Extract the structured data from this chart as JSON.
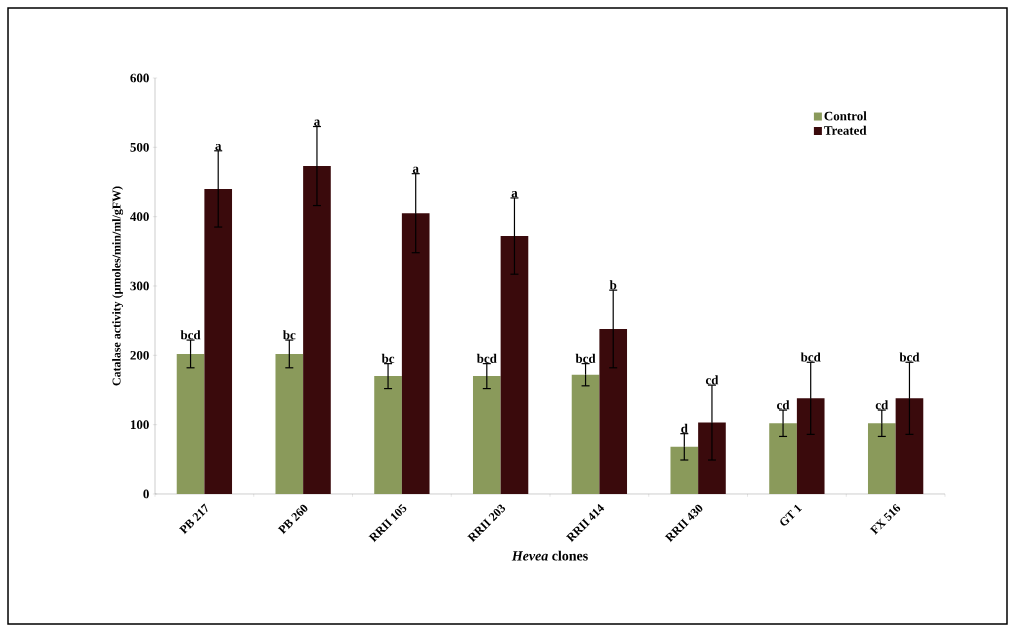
{
  "chart_data": {
    "type": "bar",
    "xlabel": "*Hevea* clones",
    "ylabel": "Catalase activity (µmoles/min/ml/gFW)",
    "categories": [
      "PB 217",
      "PB 260",
      "RRII 105",
      "RRII 203",
      "RRII 414",
      "RRII 430",
      "GT 1",
      "FX 516"
    ],
    "series": [
      {
        "name": "Control",
        "color": "#8a9a5b",
        "values": [
          202,
          202,
          170,
          170,
          172,
          68,
          102,
          102
        ],
        "errors": [
          20,
          20,
          18,
          18,
          16,
          19,
          19,
          19
        ],
        "value_labels": [
          "bcd",
          "bc",
          "bc",
          "bcd",
          "bcd",
          "d",
          "cd",
          "cd"
        ]
      },
      {
        "name": "Treated",
        "color": "#3a0a0c",
        "values": [
          440,
          473,
          405,
          372,
          238,
          103,
          138,
          138
        ],
        "errors": [
          55,
          57,
          57,
          55,
          56,
          54,
          52,
          52
        ],
        "value_labels": [
          "a",
          "a",
          "a",
          "a",
          "b",
          "cd",
          "bcd",
          "bcd"
        ]
      }
    ],
    "ylim": [
      0,
      600
    ],
    "yticks": [
      0,
      100,
      200,
      300,
      400,
      500,
      600
    ],
    "legend": "top right",
    "grid": false
  }
}
